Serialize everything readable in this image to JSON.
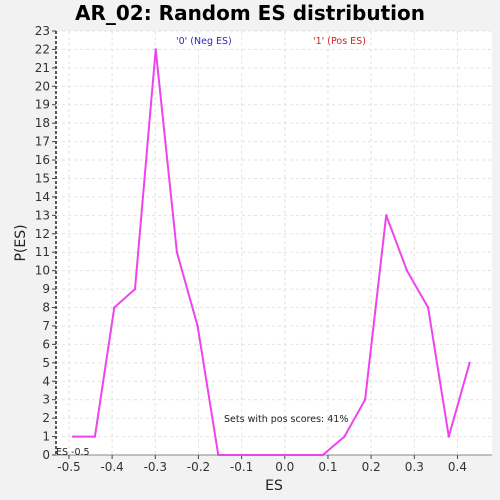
{
  "chart_data": {
    "type": "line",
    "title": "AR_02: Random ES distribution",
    "xlabel": "ES",
    "ylabel": "P(ES)",
    "xlim": [
      -0.53,
      0.48
    ],
    "ylim": [
      0,
      23
    ],
    "x_ticks": [
      -0.5,
      -0.4,
      -0.3,
      -0.2,
      -0.1,
      0.0,
      0.1,
      0.2,
      0.3,
      0.4
    ],
    "x_tick_labels": [
      "-0.5",
      "-0.4",
      "-0.3",
      "-0.2",
      "-0.1",
      "0.0",
      "0.1",
      "0.2",
      "0.3",
      "0.4"
    ],
    "y_ticks": [
      0,
      1,
      2,
      3,
      4,
      5,
      6,
      7,
      8,
      9,
      10,
      11,
      12,
      13,
      14,
      15,
      16,
      17,
      18,
      19,
      20,
      21,
      22,
      23
    ],
    "grid": true,
    "legend": [
      {
        "label": "'0' (Neg ES)",
        "color": "#2a2ab8"
      },
      {
        "label": "'1' (Pos ES)",
        "color": "#d62020"
      }
    ],
    "series": [
      {
        "color": "#ee44ee",
        "x": [
          -0.49,
          -0.44,
          -0.395,
          -0.347,
          -0.299,
          -0.25,
          -0.202,
          -0.154,
          0.088,
          0.138,
          0.186,
          0.235,
          0.283,
          0.332,
          0.38,
          0.428
        ],
        "y": [
          1,
          1,
          8,
          9,
          22,
          11,
          7,
          0,
          0,
          1,
          3,
          13,
          10,
          8,
          1,
          5
        ]
      }
    ],
    "annotations": {
      "pos_scores": "Sets with pos scores: 41%",
      "es_marker": "ES -0.5"
    }
  }
}
